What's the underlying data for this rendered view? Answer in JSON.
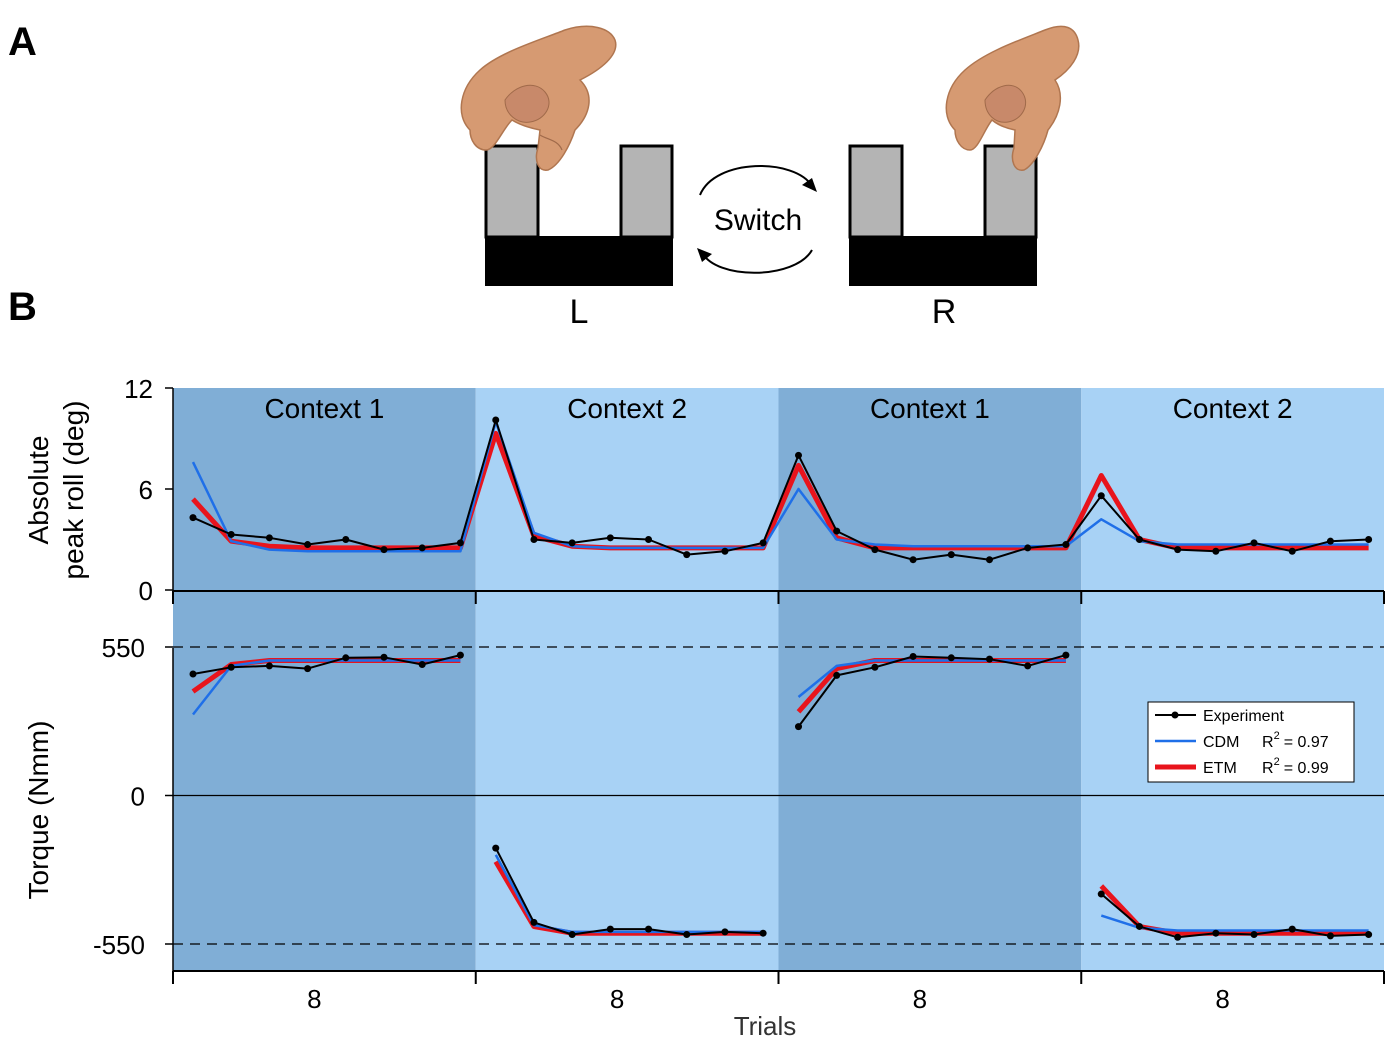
{
  "panel_a": {
    "label": "A",
    "switch_label": "Switch",
    "left_label": "L",
    "right_label": "R"
  },
  "panel_b": {
    "label": "B"
  },
  "colors": {
    "context1_bg": "#80aed6",
    "context2_bg": "#a8d2f5",
    "experiment": "#000000",
    "cdm": "#1f6fe8",
    "etm": "#e8141c",
    "block_gray": "#b4b4b4",
    "block_black": "#000000",
    "skin": "#d69a72"
  },
  "legend": {
    "experiment": "Experiment",
    "cdm": "CDM",
    "cdm_r2_prefix": "R",
    "cdm_r2_sup": "2",
    "cdm_r2_value": "= 0.97",
    "etm": "ETM",
    "etm_r2_prefix": "R",
    "etm_r2_sup": "2",
    "etm_r2_value": "= 0.99"
  },
  "chart_data": [
    {
      "type": "line",
      "ylabel_line1": "Absolute",
      "ylabel_line2": "peak roll (deg)",
      "ylim": [
        0,
        12
      ],
      "yticks": [
        0,
        6,
        12
      ],
      "context_labels": [
        "Context 1",
        "Context 2",
        "Context 1",
        "Context 2"
      ],
      "x": [
        1,
        2,
        3,
        4,
        5,
        6,
        7,
        8,
        9,
        10,
        11,
        12,
        13,
        14,
        15,
        16,
        17,
        18,
        19,
        20,
        21,
        22,
        23,
        24,
        25,
        26,
        27,
        28,
        29,
        30,
        31,
        32
      ],
      "series": [
        {
          "name": "Experiment",
          "values": [
            4.3,
            3.3,
            3.1,
            2.7,
            3.0,
            2.4,
            2.5,
            2.8,
            10.1,
            3.0,
            2.8,
            3.1,
            3.0,
            2.1,
            2.3,
            2.8,
            8.0,
            3.5,
            2.4,
            1.8,
            2.1,
            1.8,
            2.5,
            2.7,
            5.6,
            3.0,
            2.4,
            2.3,
            2.8,
            2.3,
            2.9,
            3.0
          ]
        },
        {
          "name": "CDM",
          "values": [
            7.6,
            2.9,
            2.4,
            2.3,
            2.3,
            2.3,
            2.3,
            2.3,
            10.0,
            3.4,
            2.6,
            2.5,
            2.5,
            2.5,
            2.5,
            2.5,
            6.0,
            3.0,
            2.7,
            2.6,
            2.6,
            2.6,
            2.6,
            2.6,
            4.2,
            2.9,
            2.7,
            2.7,
            2.7,
            2.7,
            2.7,
            2.7
          ]
        },
        {
          "name": "ETM",
          "values": [
            5.4,
            2.9,
            2.6,
            2.5,
            2.5,
            2.5,
            2.5,
            2.5,
            9.3,
            3.2,
            2.6,
            2.5,
            2.5,
            2.5,
            2.5,
            2.5,
            7.4,
            3.1,
            2.5,
            2.5,
            2.5,
            2.5,
            2.5,
            2.5,
            6.8,
            3.0,
            2.5,
            2.5,
            2.5,
            2.5,
            2.5,
            2.5
          ]
        }
      ]
    },
    {
      "type": "line",
      "ylabel": "Torque  (Nmm)",
      "ylim": [
        -650,
        650
      ],
      "yticks": [
        -550,
        0,
        550
      ],
      "ytick_labels": [
        "-550",
        "0",
        "550"
      ],
      "dashed_lines": [
        550,
        -550
      ],
      "xlabel": "Trials",
      "xtick_labels": [
        "8",
        "8",
        "8",
        "8"
      ],
      "x": [
        1,
        2,
        3,
        4,
        5,
        6,
        7,
        8,
        9,
        10,
        11,
        12,
        13,
        14,
        15,
        16,
        17,
        18,
        19,
        20,
        21,
        22,
        23,
        24,
        25,
        26,
        27,
        28,
        29,
        30,
        31,
        32
      ],
      "series": [
        {
          "name": "Experiment",
          "values": [
            450,
            475,
            480,
            470,
            510,
            512,
            485,
            520,
            -195,
            -470,
            -515,
            -495,
            -495,
            -515,
            -505,
            -510,
            255,
            445,
            475,
            515,
            510,
            505,
            480,
            520,
            -365,
            -485,
            -525,
            -510,
            -515,
            -495,
            -520,
            -515
          ]
        },
        {
          "name": "CDM",
          "values": [
            300,
            480,
            500,
            500,
            500,
            500,
            500,
            500,
            -220,
            -480,
            -505,
            -505,
            -505,
            -505,
            -505,
            -505,
            365,
            480,
            500,
            500,
            500,
            500,
            500,
            500,
            -445,
            -490,
            -500,
            -500,
            -500,
            -500,
            -500,
            -500
          ]
        },
        {
          "name": "ETM",
          "values": [
            385,
            485,
            500,
            500,
            500,
            500,
            500,
            500,
            -245,
            -485,
            -510,
            -510,
            -510,
            -510,
            -510,
            -510,
            310,
            470,
            500,
            500,
            500,
            500,
            500,
            500,
            -335,
            -485,
            -510,
            -510,
            -510,
            -510,
            -510,
            -510
          ]
        }
      ]
    }
  ]
}
